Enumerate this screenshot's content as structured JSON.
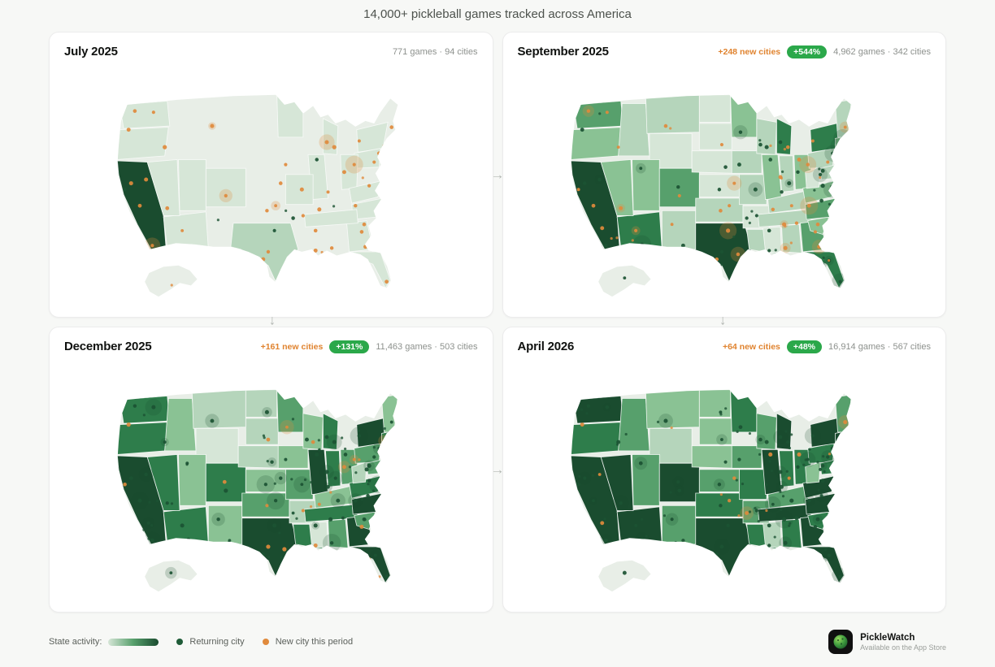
{
  "header": {
    "title": "14,000+ pickleball games tracked across America"
  },
  "panels": [
    {
      "title": "July 2025",
      "stats": "771 games · 94 cities",
      "games": "771",
      "cities": "94"
    },
    {
      "title": "September 2025",
      "new_cities": "+248 new cities",
      "growth": "+544%",
      "stats": "4,962 games · 342 cities",
      "games": "4,962",
      "cities": "342"
    },
    {
      "title": "December 2025",
      "new_cities": "+161 new cities",
      "growth": "+131%",
      "stats": "11,463 games · 503 cities",
      "games": "11,463",
      "cities": "503"
    },
    {
      "title": "April 2026",
      "new_cities": "+64 new cities",
      "growth": "+48%",
      "stats": "16,914 games · 567 cities",
      "games": "16,914",
      "cities": "567"
    }
  ],
  "legend": {
    "label": "State activity:",
    "returning": "Returning city",
    "new_city": "New city this period"
  },
  "footer": {
    "brand": "PickleWatch",
    "subtitle": "Available on the App Store"
  },
  "icons": {
    "right_arrow": "→",
    "down_arrow": "↓"
  },
  "colors": {
    "orange": "#e08a3c",
    "badge_green": "#2ba84a",
    "returning_dot": "#1b5233",
    "halo_returning": "rgba(24,76,46,0.20)",
    "halo_new": "rgba(224,138,60,0.25)",
    "palette": [
      "#e8eee7",
      "#d6e6d7",
      "#b5d5bb",
      "#8ac294",
      "#57a06c",
      "#2e7d4b",
      "#1a4c2f"
    ]
  }
}
